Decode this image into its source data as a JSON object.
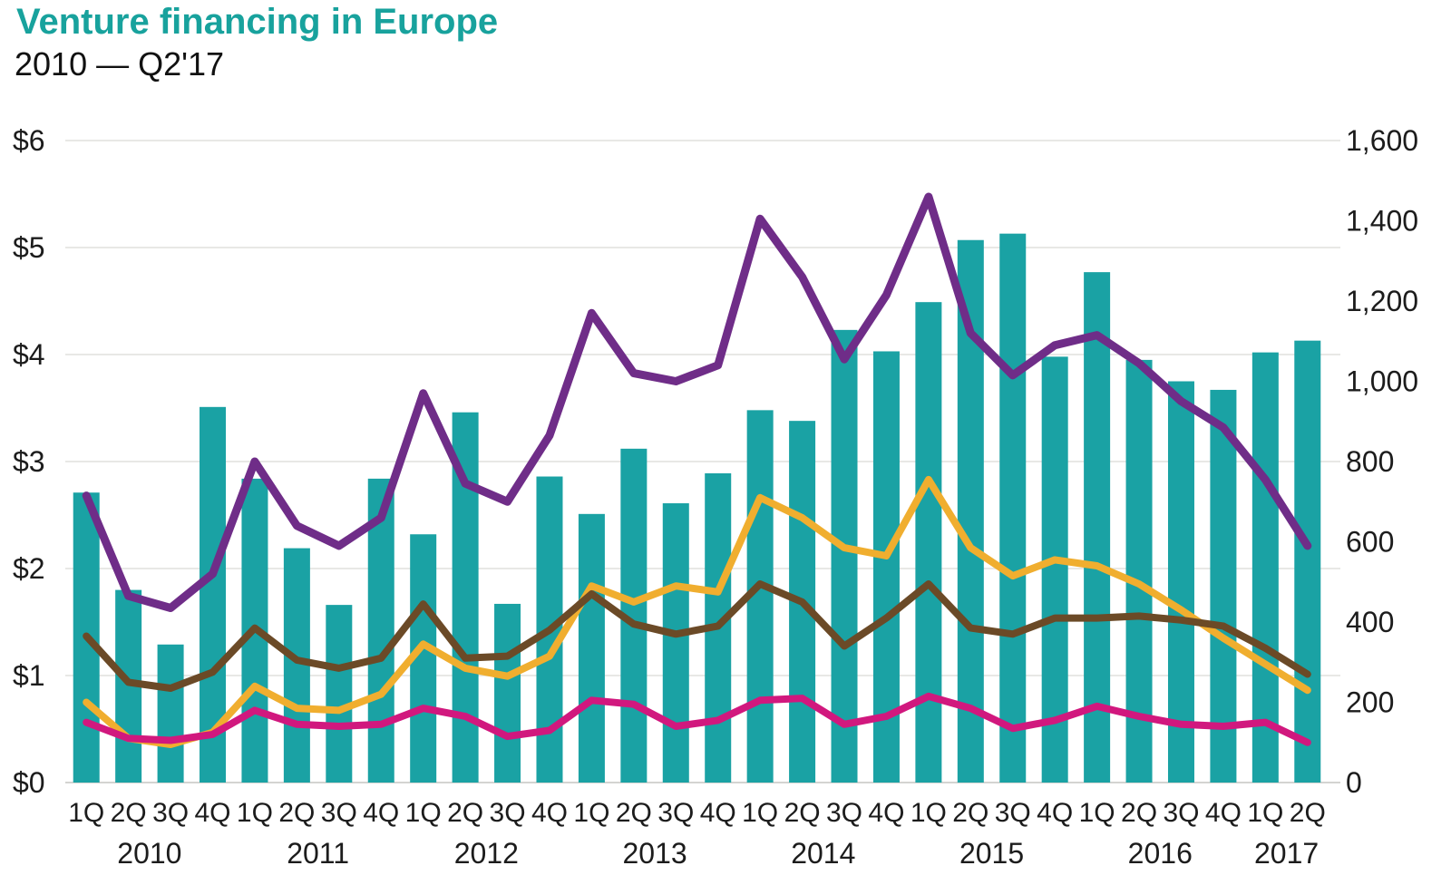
{
  "header": {
    "title": "Venture financing in Europe",
    "subtitle": "2010 — Q2'17"
  },
  "chart_data": {
    "type": "bar",
    "combo": "bar series on left dollar axis with four line series on right count axis",
    "title": "Venture financing in Europe",
    "subtitle": "2010 — Q2'17",
    "grid": "horizontal gridlines at each left-axis dollar tick, drawn behind bars",
    "legend_position": "none",
    "left_axis": {
      "tick_labels": [
        "$0",
        "$1",
        "$2",
        "$3",
        "$4",
        "$5",
        "$6"
      ],
      "min": 0,
      "max": 6
    },
    "right_axis": {
      "tick_labels": [
        "0",
        "200",
        "400",
        "600",
        "800",
        "1,000",
        "1,200",
        "1,400",
        "1,600"
      ],
      "min": 0,
      "max": 1600,
      "tick_step": 200
    },
    "quarter_labels": [
      "1Q",
      "2Q",
      "3Q",
      "4Q",
      "1Q",
      "2Q",
      "3Q",
      "4Q",
      "1Q",
      "2Q",
      "3Q",
      "4Q",
      "1Q",
      "2Q",
      "3Q",
      "4Q",
      "1Q",
      "2Q",
      "3Q",
      "4Q",
      "1Q",
      "2Q",
      "3Q",
      "4Q",
      "1Q",
      "2Q",
      "3Q",
      "4Q",
      "1Q",
      "2Q"
    ],
    "year_groups": [
      {
        "label": "2010",
        "quarters": 4
      },
      {
        "label": "2011",
        "quarters": 4
      },
      {
        "label": "2012",
        "quarters": 4
      },
      {
        "label": "2013",
        "quarters": 4
      },
      {
        "label": "2014",
        "quarters": 4
      },
      {
        "label": "2015",
        "quarters": 4
      },
      {
        "label": "2016",
        "quarters": 4
      },
      {
        "label": "2017",
        "quarters": 2
      }
    ],
    "series": [
      {
        "id": "capital_invested_bars",
        "type": "bar",
        "axis": "left",
        "color": "#1AA2A4",
        "values": [
          2.71,
          1.8,
          1.29,
          3.51,
          2.84,
          2.19,
          1.66,
          2.84,
          2.32,
          3.46,
          1.67,
          2.86,
          2.51,
          3.12,
          2.61,
          2.89,
          3.48,
          3.38,
          4.23,
          4.03,
          4.49,
          5.07,
          5.13,
          3.98,
          4.77,
          3.95,
          3.75,
          3.67,
          4.02,
          4.13
        ]
      },
      {
        "id": "line_yellow",
        "type": "line",
        "axis": "right",
        "color": "#F0AE2F",
        "stroke_width": 8,
        "values": [
          200,
          110,
          95,
          125,
          240,
          185,
          180,
          220,
          345,
          285,
          265,
          315,
          490,
          450,
          490,
          475,
          710,
          660,
          585,
          565,
          755,
          585,
          515,
          555,
          540,
          495,
          430,
          360,
          295,
          230
        ]
      },
      {
        "id": "line_brown",
        "type": "line",
        "axis": "right",
        "color": "#6B4A27",
        "stroke_width": 8,
        "values": [
          365,
          250,
          235,
          275,
          385,
          305,
          285,
          310,
          445,
          310,
          315,
          380,
          470,
          395,
          370,
          390,
          495,
          450,
          340,
          410,
          495,
          385,
          370,
          410,
          410,
          415,
          405,
          390,
          335,
          270
        ]
      },
      {
        "id": "line_pink",
        "type": "line",
        "axis": "right",
        "color": "#D1187E",
        "stroke_width": 8,
        "values": [
          150,
          110,
          105,
          120,
          180,
          145,
          140,
          145,
          185,
          165,
          115,
          130,
          205,
          195,
          140,
          155,
          205,
          210,
          145,
          165,
          215,
          185,
          135,
          155,
          190,
          165,
          145,
          140,
          150,
          100
        ]
      },
      {
        "id": "line_purple",
        "type": "line",
        "axis": "right",
        "color": "#6F2D88",
        "stroke_width": 9,
        "values": [
          715,
          465,
          435,
          520,
          800,
          640,
          590,
          660,
          970,
          745,
          700,
          865,
          1170,
          1020,
          1000,
          1040,
          1405,
          1260,
          1055,
          1215,
          1460,
          1120,
          1015,
          1090,
          1115,
          1045,
          950,
          885,
          755,
          590
        ]
      }
    ]
  },
  "colors": {
    "title_teal": "#18A29D",
    "bar_teal": "#1AA2A4",
    "purple": "#6F2D88",
    "yellow": "#F0AE2F",
    "brown": "#6B4A27",
    "pink": "#D1187E",
    "gridline": "#E8E8E5",
    "baseline": "#D4D4D1",
    "axis_text": "#1C1C1C"
  }
}
